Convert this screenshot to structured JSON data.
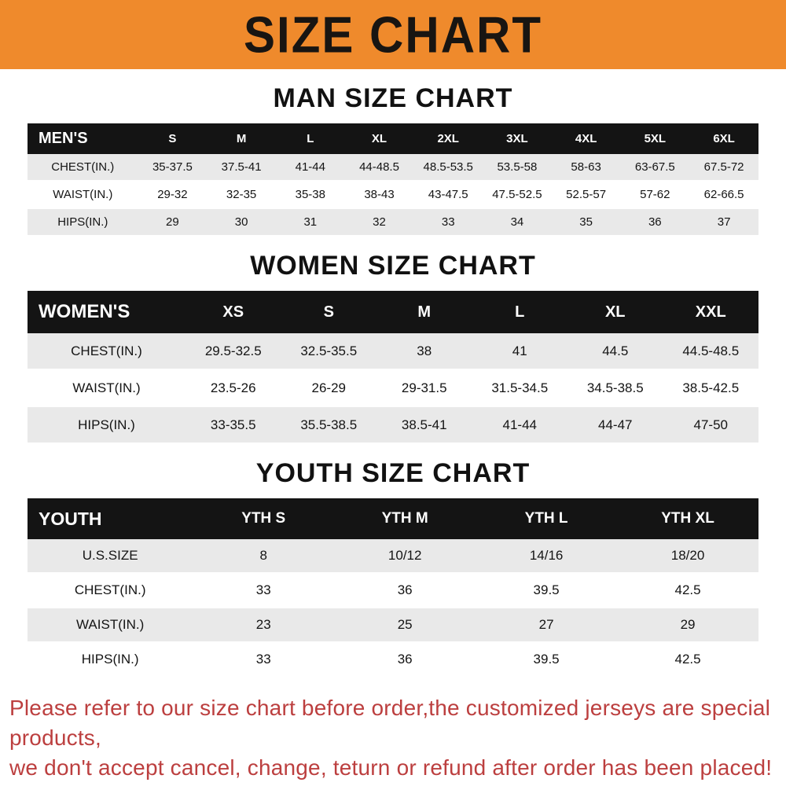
{
  "banner": {
    "title": "SIZE CHART",
    "background_color": "#ef8a2c",
    "text_color": "#181512"
  },
  "chart_data": [
    {
      "type": "table",
      "title": "MAN SIZE CHART",
      "header_label": "MEN'S",
      "columns": [
        "S",
        "M",
        "L",
        "XL",
        "2XL",
        "3XL",
        "4XL",
        "5XL",
        "6XL"
      ],
      "rows": [
        {
          "label": "CHEST(IN.)",
          "values": [
            "35-37.5",
            "37.5-41",
            "41-44",
            "44-48.5",
            "48.5-53.5",
            "53.5-58",
            "58-63",
            "63-67.5",
            "67.5-72"
          ]
        },
        {
          "label": "WAIST(IN.)",
          "values": [
            "29-32",
            "32-35",
            "35-38",
            "38-43",
            "43-47.5",
            "47.5-52.5",
            "52.5-57",
            "57-62",
            "62-66.5"
          ]
        },
        {
          "label": "HIPS(IN.)",
          "values": [
            "29",
            "30",
            "31",
            "32",
            "33",
            "34",
            "35",
            "36",
            "37"
          ]
        }
      ]
    },
    {
      "type": "table",
      "title": "WOMEN SIZE CHART",
      "header_label": "WOMEN'S",
      "columns": [
        "XS",
        "S",
        "M",
        "L",
        "XL",
        "XXL"
      ],
      "rows": [
        {
          "label": "CHEST(IN.)",
          "values": [
            "29.5-32.5",
            "32.5-35.5",
            "38",
            "41",
            "44.5",
            "44.5-48.5"
          ]
        },
        {
          "label": "WAIST(IN.)",
          "values": [
            "23.5-26",
            "26-29",
            "29-31.5",
            "31.5-34.5",
            "34.5-38.5",
            "38.5-42.5"
          ]
        },
        {
          "label": "HIPS(IN.)",
          "values": [
            "33-35.5",
            "35.5-38.5",
            "38.5-41",
            "41-44",
            "44-47",
            "47-50"
          ]
        }
      ]
    },
    {
      "type": "table",
      "title": "YOUTH SIZE CHART",
      "header_label": "YOUTH",
      "columns": [
        "YTH S",
        "YTH M",
        "YTH L",
        "YTH XL"
      ],
      "rows": [
        {
          "label": "U.S.SIZE",
          "values": [
            "8",
            "10/12",
            "14/16",
            "18/20"
          ]
        },
        {
          "label": "CHEST(IN.)",
          "values": [
            "33",
            "36",
            "39.5",
            "42.5"
          ]
        },
        {
          "label": "WAIST(IN.)",
          "values": [
            "23",
            "25",
            "27",
            "29"
          ]
        },
        {
          "label": "HIPS(IN.)",
          "values": [
            "33",
            "36",
            "39.5",
            "42.5"
          ]
        }
      ]
    }
  ],
  "footer": {
    "lines": [
      "Please refer to our size chart before order,the customized jerseys are special products,",
      "we don't accept cancel, change, teturn or refund after order has been placed!"
    ],
    "color": "#bc3f3f"
  }
}
